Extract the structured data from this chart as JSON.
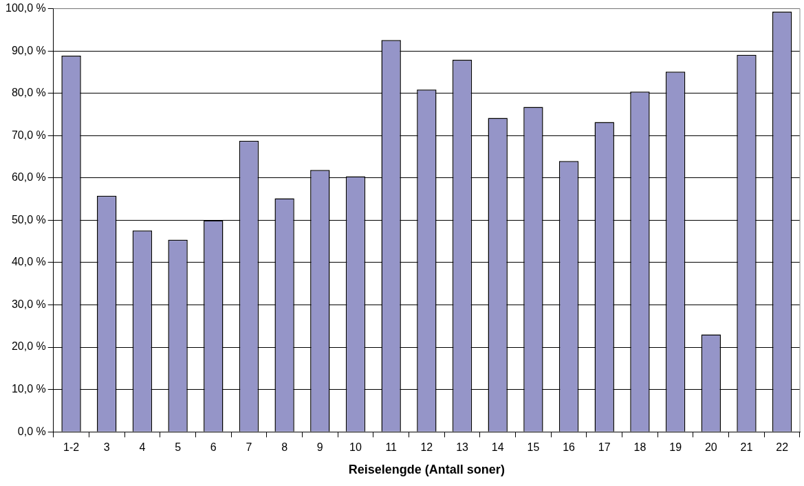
{
  "chart_data": {
    "type": "bar",
    "xlabel": "Reiselengde (Antall soner)",
    "categories": [
      "1-2",
      "3",
      "4",
      "5",
      "6",
      "7",
      "8",
      "9",
      "10",
      "11",
      "12",
      "13",
      "14",
      "15",
      "16",
      "17",
      "18",
      "19",
      "20",
      "21",
      "22"
    ],
    "values": [
      88.9,
      55.8,
      47.6,
      45.4,
      50.0,
      68.8,
      55.2,
      61.9,
      60.4,
      92.6,
      80.9,
      87.9,
      74.2,
      76.8,
      64.0,
      73.2,
      80.4,
      85.1,
      23.0,
      89.1,
      99.3
    ],
    "color": "#9595c8",
    "ylim": [
      0,
      100
    ],
    "yticks": [
      {
        "value": 0,
        "label": "0,0 %"
      },
      {
        "value": 10,
        "label": "10,0 %"
      },
      {
        "value": 20,
        "label": "20,0 %"
      },
      {
        "value": 30,
        "label": "30,0 %"
      },
      {
        "value": 40,
        "label": "40,0 %"
      },
      {
        "value": 50,
        "label": "50,0 %"
      },
      {
        "value": 60,
        "label": "60,0 %"
      },
      {
        "value": 70,
        "label": "70,0 %"
      },
      {
        "value": 80,
        "label": "80,0 %"
      },
      {
        "value": 90,
        "label": "90,0 %"
      },
      {
        "value": 100,
        "label": "100,0 %"
      }
    ],
    "grid": "y",
    "legend": false
  }
}
